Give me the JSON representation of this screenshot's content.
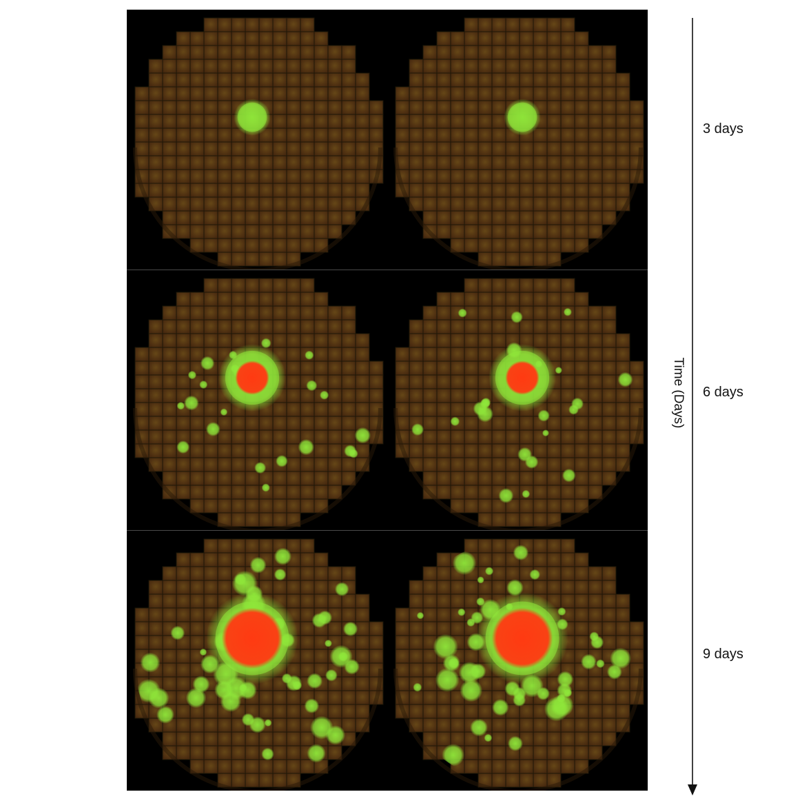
{
  "figure": {
    "axis_title": "Time (Days)",
    "time_points": [
      {
        "label": "3 days",
        "spread": 0.12,
        "core": 0.0,
        "satellites": 0
      },
      {
        "label": "6 days",
        "spread": 0.22,
        "core": 0.55,
        "satellites": 22
      },
      {
        "label": "9 days",
        "spread": 0.3,
        "core": 0.72,
        "satellites": 48
      }
    ],
    "replicates_per_time_point": 2
  },
  "colors": {
    "background": "#000000",
    "dish": "#5a3c14",
    "grid_line": "#1f1808",
    "green_signal": "#8fe83a",
    "red_signal": "#ff3a12",
    "arrow": "#111111"
  }
}
